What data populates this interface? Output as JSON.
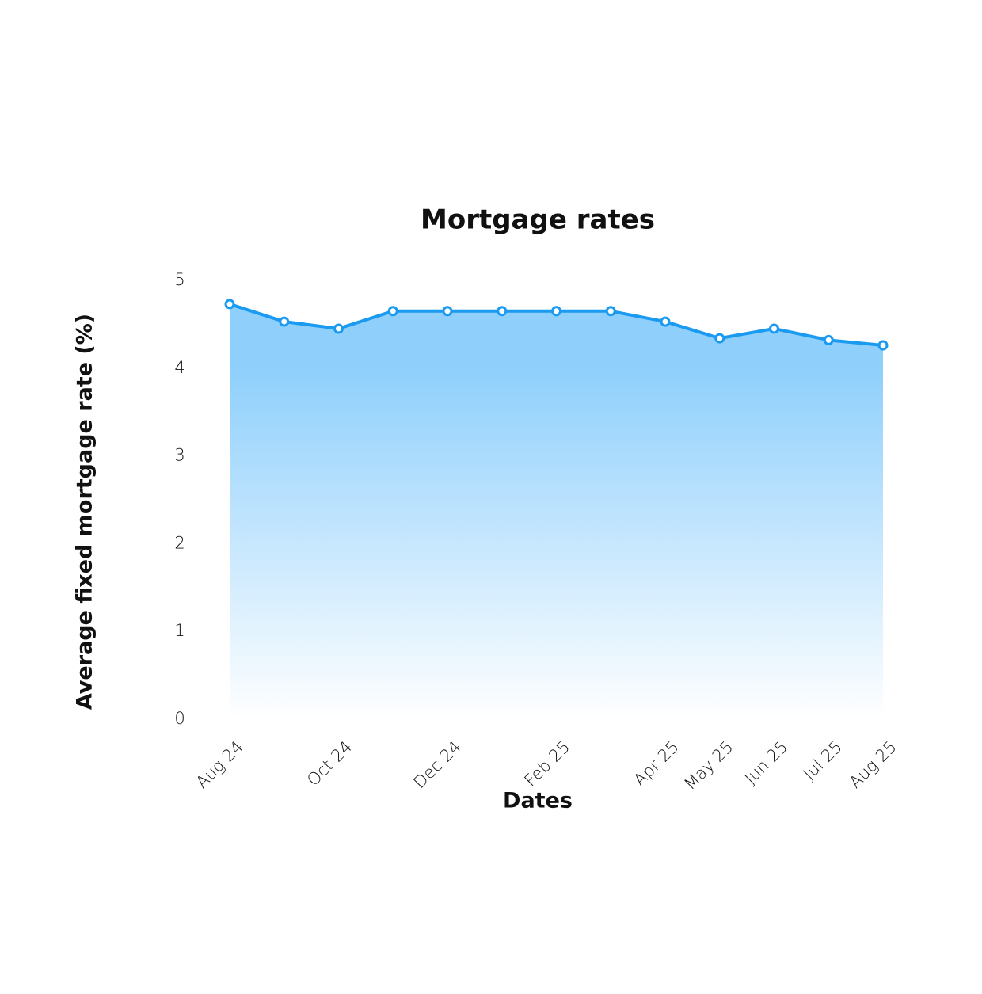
{
  "chart_data": {
    "type": "area",
    "title": "Mortgage rates",
    "x_label": "Dates",
    "y_label": "Average fixed mortgage rate (%)",
    "categories": [
      "Aug 24",
      null,
      "Oct 24",
      null,
      "Dec 24",
      null,
      "Feb 25",
      null,
      "Apr 25",
      "May 25",
      "Jun 25",
      "Jul 25",
      "Aug 25"
    ],
    "values": [
      4.73,
      4.53,
      4.45,
      4.65,
      4.65,
      4.65,
      4.65,
      4.65,
      4.53,
      4.34,
      4.45,
      4.32,
      4.26
    ],
    "color": "#1a9af0",
    "fill_color": "#8ecffc",
    "ylim": [
      0,
      5
    ],
    "yticks": [
      0,
      1,
      2,
      3,
      4,
      5
    ],
    "grid": false
  }
}
